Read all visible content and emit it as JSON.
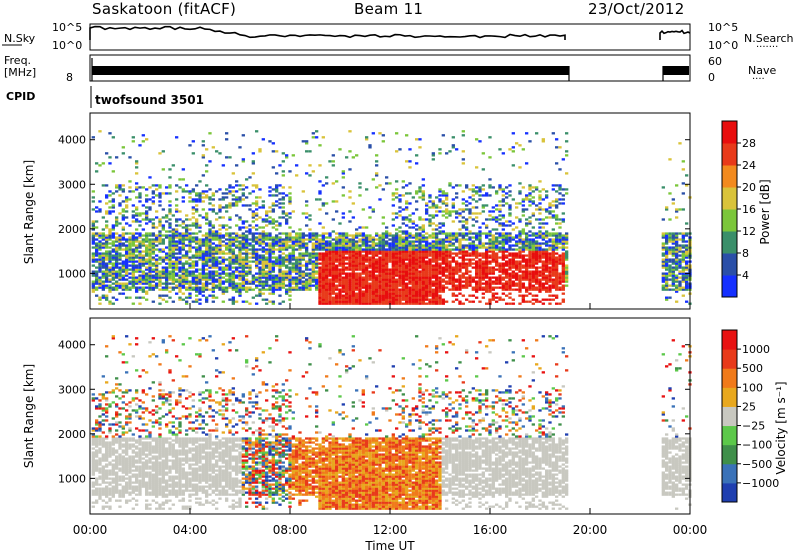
{
  "header": {
    "station": "Saskatoon (fitACF)",
    "beam": "Beam 11",
    "date": "23/Oct/2012"
  },
  "aux_panels": {
    "noise": {
      "left_label": "N.Sky",
      "right_label": "N.Search",
      "right_dots": "·······",
      "left_ticks": [
        "10^5",
        "10^0"
      ],
      "right_ticks": [
        "10^5",
        "10^0"
      ]
    },
    "freq": {
      "left_label_1": "Freq.",
      "left_label_2": "[MHz]",
      "right_label": "Nave",
      "right_dots": "····",
      "left_ticks": [
        "",
        "8"
      ],
      "right_ticks": [
        "60",
        "0"
      ]
    },
    "cpid": {
      "label": "CPID",
      "program": "twofsound 3501"
    }
  },
  "chart_data": [
    {
      "type": "heatmap",
      "parameter": "power",
      "ylabel": "Slant Range [km]",
      "ylim": [
        200,
        4600
      ],
      "yticks": [
        "1000",
        "2000",
        "3000",
        "4000"
      ],
      "xlim_hours": [
        0,
        24
      ],
      "colorbar": {
        "label": "Power [dB]",
        "ticks": [
          "4",
          "8",
          "12",
          "16",
          "20",
          "24",
          "28"
        ],
        "colors": [
          "#1530ff",
          "#2a4fa8",
          "#3a8f6a",
          "#7bc63a",
          "#d9c33a",
          "#f28a1e",
          "#e83a1a",
          "#e80d0d"
        ]
      },
      "data_gap_hours": [
        19.0,
        22.8
      ]
    },
    {
      "type": "heatmap",
      "parameter": "velocity",
      "ylabel": "Slant Range [km]",
      "ylim": [
        200,
        4600
      ],
      "yticks": [
        "1000",
        "2000",
        "3000",
        "4000"
      ],
      "xlim_hours": [
        0,
        24
      ],
      "colorbar": {
        "label": "Velocity [m s⁻¹]",
        "ticks": [
          "1000",
          "500",
          "100",
          "25",
          "−25",
          "−100",
          "−500",
          "−1000"
        ],
        "colors": [
          "#1f3fb0",
          "#3a72b8",
          "#3f8f4a",
          "#5cc84a",
          "#c8c8c0",
          "#e8a81e",
          "#f07a1a",
          "#e83a1a",
          "#e81212"
        ]
      },
      "data_gap_hours": [
        19.0,
        22.8
      ]
    }
  ],
  "xaxis": {
    "label": "Time UT",
    "ticks": [
      "00:00",
      "04:00",
      "08:00",
      "12:00",
      "16:00",
      "20:00",
      "00:00"
    ]
  }
}
